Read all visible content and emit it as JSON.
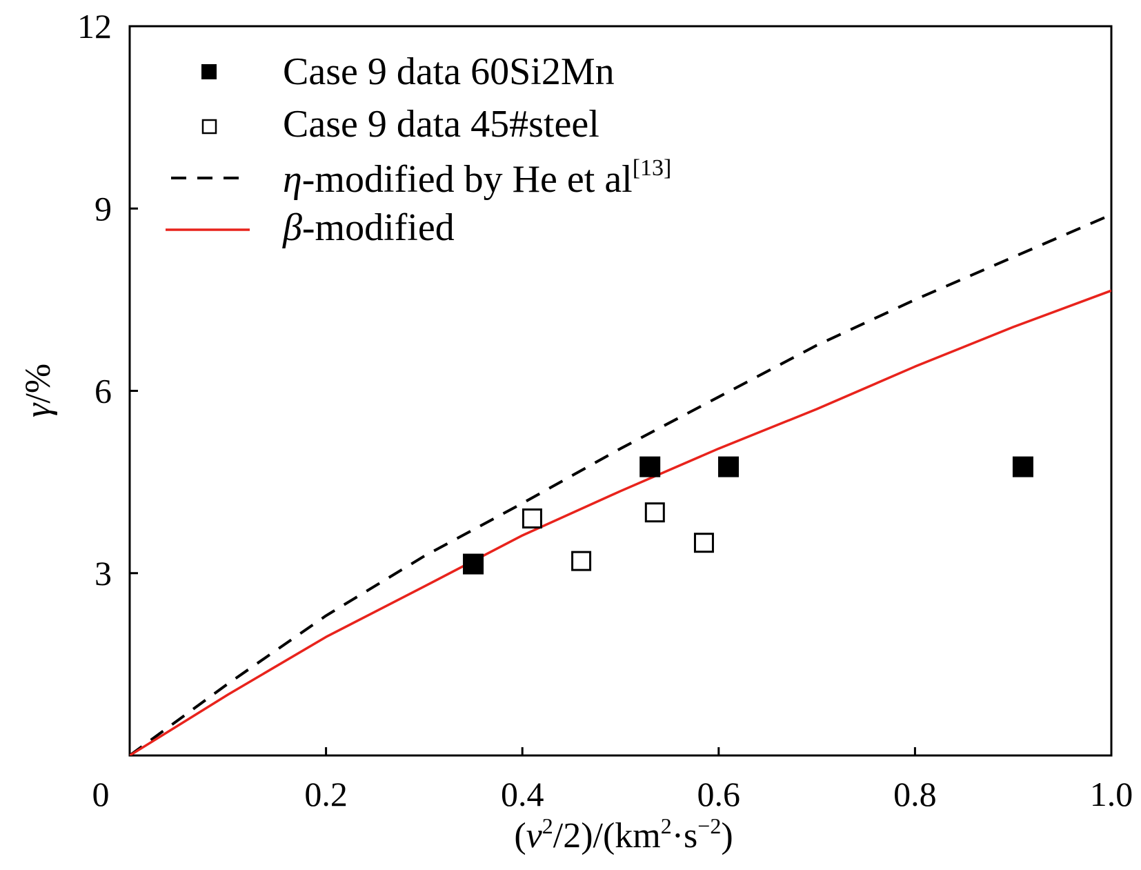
{
  "chart_data": {
    "type": "scatter",
    "x_axis": {
      "label_parts": [
        "(",
        "v",
        "2",
        "/2)/(km",
        "2",
        "·s",
        "−2",
        ")"
      ],
      "range": [
        0,
        1.0
      ],
      "ticks": [
        0.2,
        0.4,
        0.6,
        0.8,
        1.0
      ],
      "tick_labels": [
        "0.2",
        "0.4",
        "0.6",
        "0.8",
        "1.0"
      ]
    },
    "y_axis": {
      "label_parts": [
        "γ",
        "/%"
      ],
      "range": [
        0,
        12
      ],
      "ticks": [
        3,
        6,
        9,
        12
      ],
      "tick_labels": [
        "3",
        "6",
        "9",
        "12"
      ]
    },
    "origin_label": "0",
    "grid": false,
    "legend_position": "top-left",
    "series": [
      {
        "name": "Case 9 data 60Si2Mn",
        "kind": "scatter",
        "marker": "filled-square",
        "color": "#000000",
        "points": [
          [
            0.35,
            3.15
          ],
          [
            0.53,
            4.75
          ],
          [
            0.61,
            4.75
          ],
          [
            0.91,
            4.75
          ]
        ]
      },
      {
        "name": "Case 9 data 45#steel",
        "kind": "scatter",
        "marker": "open-square",
        "color": "#000000",
        "points": [
          [
            0.41,
            3.9
          ],
          [
            0.46,
            3.2
          ],
          [
            0.535,
            4.0
          ],
          [
            0.585,
            3.5
          ]
        ]
      },
      {
        "name_parts": [
          "η",
          "-modified by He et al",
          "[13]"
        ],
        "kind": "line",
        "style": "dashed",
        "color": "#000000",
        "points": [
          [
            0,
            0
          ],
          [
            0.1,
            1.18
          ],
          [
            0.2,
            2.3
          ],
          [
            0.3,
            3.28
          ],
          [
            0.4,
            4.15
          ],
          [
            0.5,
            5.05
          ],
          [
            0.6,
            5.9
          ],
          [
            0.7,
            6.75
          ],
          [
            0.8,
            7.5
          ],
          [
            0.9,
            8.2
          ],
          [
            1.0,
            8.9
          ]
        ]
      },
      {
        "name_parts": [
          "β",
          "-modified"
        ],
        "kind": "line",
        "style": "solid",
        "color": "#e8231c",
        "points": [
          [
            0,
            0
          ],
          [
            0.1,
            1.0
          ],
          [
            0.2,
            1.95
          ],
          [
            0.3,
            2.78
          ],
          [
            0.4,
            3.62
          ],
          [
            0.5,
            4.35
          ],
          [
            0.6,
            5.05
          ],
          [
            0.7,
            5.7
          ],
          [
            0.8,
            6.4
          ],
          [
            0.9,
            7.05
          ],
          [
            1.0,
            7.65
          ]
        ]
      }
    ]
  }
}
